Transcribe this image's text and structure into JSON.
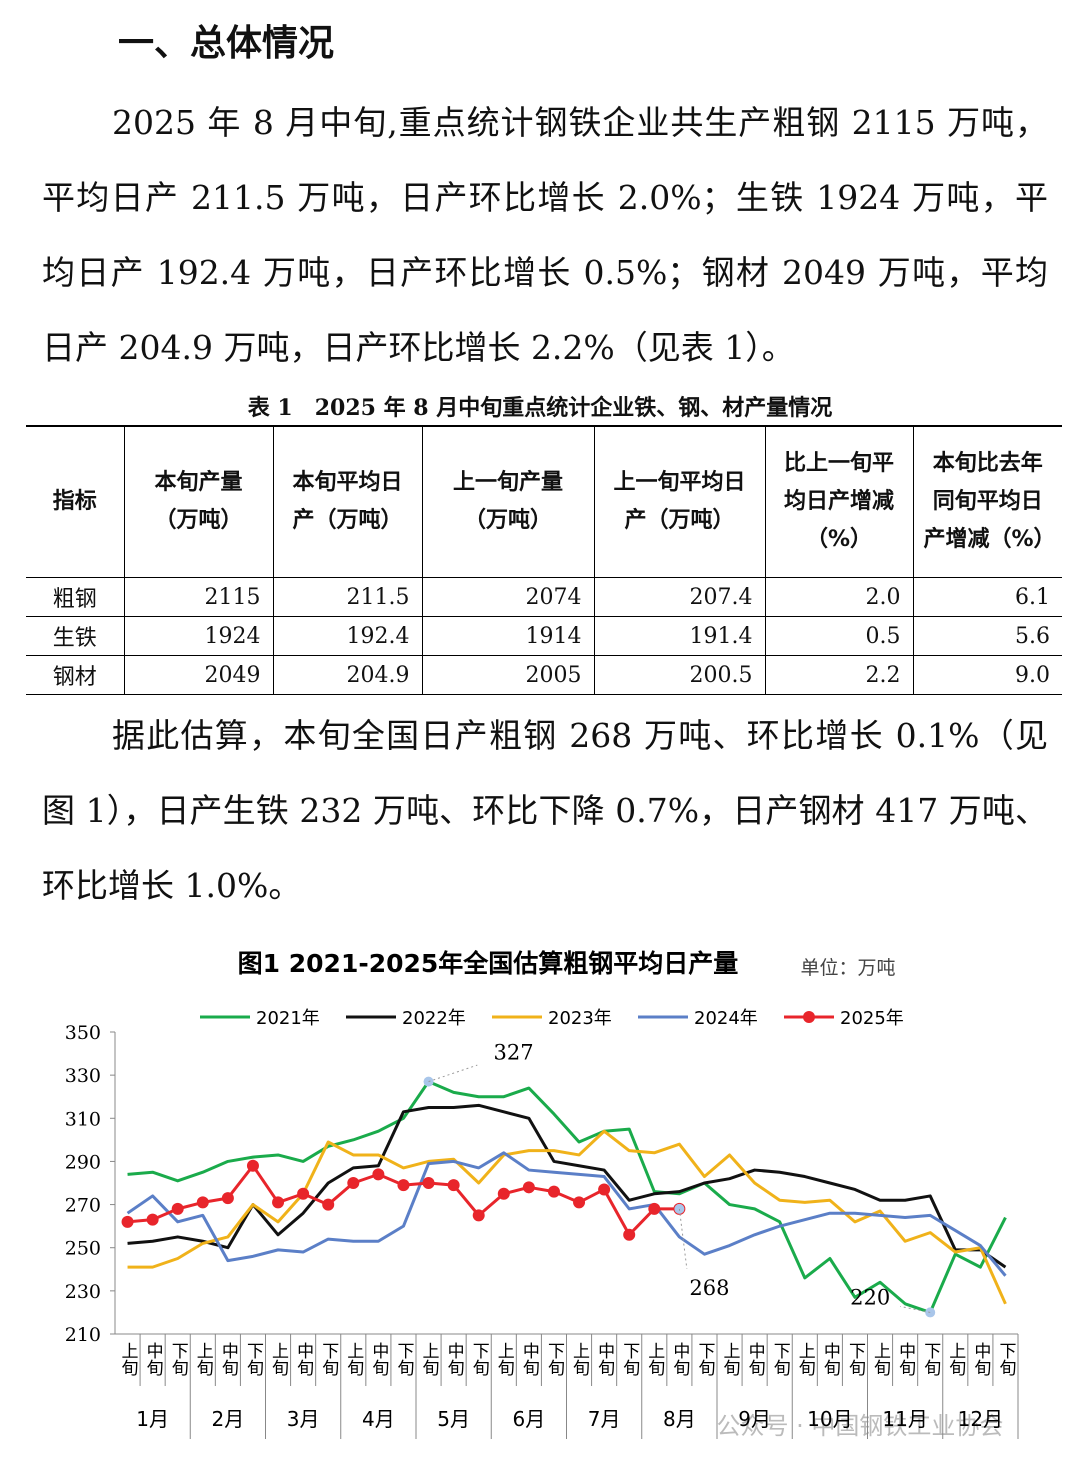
{
  "header": {
    "title": "一、总体情况"
  },
  "paragraphs": [
    "2025 年 8 月中旬,重点统计钢铁企业共生产粗钢 2115 万吨，平均日产 211.5 万吨，日产环比增长 2.0%；生铁 1924 万吨，平均日产 192.4 万吨，日产环比增长 0.5%；钢材 2049 万吨，平均日产 204.9 万吨，日产环比增长 2.2%（见表 1）。",
    "据此估算，本旬全国日产粗钢 268 万吨、环比增长 0.1%（见图 1），日产生铁 232 万吨、环比下降 0.7%，日产钢材 417 万吨、环比增长 1.0%。"
  ],
  "table": {
    "caption": "表 1　2025 年 8 月中旬重点统计企业铁、钢、材产量情况",
    "headers": [
      "指标",
      "本旬产量（万吨）",
      "本旬平均日产（万吨）",
      "上一旬产量（万吨）",
      "上一旬平均日产（万吨）",
      "比上一旬平均日产增减（%）",
      "本旬比去年同旬平均日产增减（%）"
    ],
    "rows": [
      [
        "粗钢",
        "2115",
        "211.5",
        "2074",
        "207.4",
        "2.0",
        "6.1"
      ],
      [
        "生铁",
        "1924",
        "192.4",
        "1914",
        "191.4",
        "0.5",
        "5.6"
      ],
      [
        "钢材",
        "2049",
        "204.9",
        "2005",
        "200.5",
        "2.2",
        "9.0"
      ]
    ]
  },
  "chart_data": {
    "type": "line",
    "title": "图1  2021-2025年全国估算粗钢平均日产量",
    "unit": "单位：万吨",
    "categories": [
      "上旬",
      "中旬",
      "下旬",
      "上旬",
      "中旬",
      "下旬",
      "上旬",
      "中旬",
      "下旬",
      "上旬",
      "中旬",
      "下旬",
      "上旬",
      "中旬",
      "下旬",
      "上旬",
      "中旬",
      "下旬",
      "上旬",
      "中旬",
      "下旬",
      "上旬",
      "中旬",
      "下旬",
      "上旬",
      "中旬",
      "下旬",
      "上旬",
      "中旬",
      "下旬",
      "上旬",
      "中旬",
      "下旬",
      "上旬",
      "中旬",
      "下旬"
    ],
    "groups": [
      "1月",
      "2月",
      "3月",
      "4月",
      "5月",
      "6月",
      "7月",
      "8月",
      "9月",
      "10月",
      "11月",
      "12月"
    ],
    "ylim": [
      210,
      350
    ],
    "yticks": [
      210,
      230,
      250,
      270,
      290,
      310,
      330,
      350
    ],
    "grid": false,
    "series": [
      {
        "name": "2021年",
        "color": "#1aab4b",
        "values": [
          284,
          285,
          281,
          285,
          290,
          292,
          293,
          290,
          297,
          300,
          304,
          310,
          327,
          322,
          320,
          320,
          324,
          312,
          299,
          304,
          305,
          276,
          275,
          280,
          270,
          268,
          262,
          236,
          245,
          227,
          234,
          224,
          220,
          247,
          241,
          264
        ]
      },
      {
        "name": "2022年",
        "color": "#111111",
        "values": [
          252,
          253,
          255,
          253,
          250,
          270,
          256,
          266,
          280,
          287,
          288,
          313,
          315,
          315,
          316,
          313,
          310,
          290,
          288,
          286,
          272,
          275,
          276,
          280,
          282,
          286,
          285,
          283,
          280,
          277,
          272,
          272,
          274,
          249,
          249,
          241
        ]
      },
      {
        "name": "2023年",
        "color": "#f0b21a",
        "values": [
          241,
          241,
          245,
          252,
          255,
          270,
          262,
          275,
          299,
          293,
          293,
          287,
          290,
          291,
          280,
          293,
          295,
          295,
          293,
          304,
          295,
          294,
          298,
          283,
          293,
          280,
          272,
          271,
          272,
          262,
          267,
          253,
          257,
          248,
          250,
          224
        ]
      },
      {
        "name": "2024年",
        "color": "#5b7fc7",
        "values": [
          266,
          274,
          262,
          265,
          244,
          246,
          249,
          248,
          254,
          253,
          253,
          260,
          289,
          290,
          287,
          294,
          286,
          285,
          284,
          283,
          268,
          270,
          255,
          247,
          251,
          256,
          260,
          263,
          266,
          266,
          265,
          264,
          265,
          258,
          251,
          237
        ]
      },
      {
        "name": "2025年",
        "color": "#e8252b",
        "markers": true,
        "values": [
          262,
          263,
          268,
          271,
          273,
          288,
          271,
          275,
          270,
          280,
          284,
          279,
          280,
          279,
          265,
          275,
          278,
          276,
          271,
          277,
          256,
          268,
          268,
          null,
          null,
          null,
          null,
          null,
          null,
          null,
          null,
          null,
          null,
          null,
          null,
          null
        ]
      }
    ],
    "watermark": "公众号 · 中国钢铁工业协会"
  }
}
